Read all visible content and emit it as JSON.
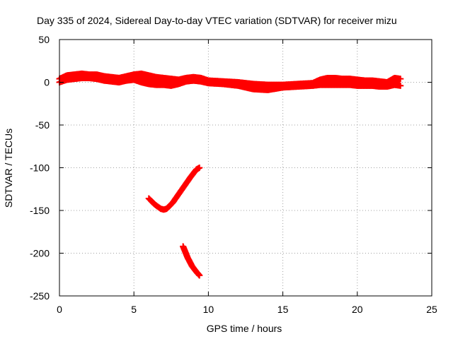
{
  "chart_data": {
    "type": "scatter",
    "title": "Day 335 of 2024, Sidereal Day-to-day VTEC variation (SDTVAR) for receiver mizu",
    "xlabel": "GPS time / hours",
    "ylabel": "SDTVAR / TECUs",
    "xlim": [
      0,
      25
    ],
    "ylim": [
      -250,
      50
    ],
    "x_ticks": [
      0,
      5,
      10,
      15,
      20,
      25
    ],
    "x_tick_labels": [
      "0",
      "5",
      "10",
      "15",
      "20",
      "25"
    ],
    "y_ticks": [
      50,
      0,
      -50,
      -100,
      -150,
      -200,
      -250
    ],
    "y_tick_labels": [
      "50",
      "0",
      "-50",
      "-100",
      "-150",
      "-200",
      "-250"
    ],
    "grid": true,
    "marker": "plus",
    "color": "#ff0000",
    "series": [
      {
        "name": "SDTVAR main band (upper edge)",
        "x": [
          0,
          0.5,
          1.0,
          1.5,
          2.0,
          2.5,
          3.0,
          3.5,
          4.0,
          4.5,
          5.0,
          5.5,
          6.0,
          6.5,
          7.0,
          7.5,
          8.0,
          8.5,
          9.0,
          9.5,
          10.0,
          11.0,
          12.0,
          13.0,
          14.0,
          15.0,
          16.0,
          17.0,
          17.5,
          18.0,
          18.5,
          19.0,
          19.5,
          20.0,
          20.5,
          21.0,
          21.5,
          22.0,
          22.5,
          22.9
        ],
        "y": [
          4,
          8,
          9,
          10,
          9,
          9,
          7,
          6,
          5,
          7,
          9,
          10,
          8,
          6,
          5,
          4,
          3,
          5,
          6,
          5,
          2,
          1,
          0,
          -2,
          -3,
          -3,
          -2,
          -1,
          3,
          5,
          5,
          4,
          4,
          3,
          2,
          2,
          1,
          0,
          5,
          4
        ]
      },
      {
        "name": "SDTVAR main band (lower edge)",
        "x": [
          0,
          0.5,
          1.0,
          1.5,
          2.0,
          2.5,
          3.0,
          3.5,
          4.0,
          4.5,
          5.0,
          5.5,
          6.0,
          6.5,
          7.0,
          7.5,
          8.0,
          8.5,
          9.0,
          9.5,
          10.0,
          11.0,
          12.0,
          13.0,
          14.0,
          15.0,
          16.0,
          17.0,
          17.5,
          18.0,
          18.5,
          19.0,
          19.5,
          20.0,
          20.5,
          21.0,
          21.5,
          22.0,
          22.5,
          22.9
        ],
        "y": [
          0,
          3,
          4,
          5,
          5,
          4,
          2,
          1,
          0,
          2,
          3,
          0,
          -2,
          -3,
          -3,
          -4,
          -2,
          1,
          2,
          1,
          -1,
          -2,
          -4,
          -8,
          -9,
          -6,
          -5,
          -4,
          -3,
          -3,
          -3,
          -3,
          -3,
          -4,
          -4,
          -4,
          -5,
          -5,
          -3,
          -4
        ]
      },
      {
        "name": "SDTVAR arc 1",
        "x": [
          6.0,
          6.4,
          6.8,
          7.0,
          7.2,
          7.6,
          8.0,
          8.4,
          8.8,
          9.2,
          9.4
        ],
        "y": [
          -136,
          -143,
          -148,
          -149,
          -148,
          -141,
          -131,
          -121,
          -111,
          -102,
          -100
        ]
      },
      {
        "name": "SDTVAR arc 2",
        "x": [
          8.3,
          8.6,
          8.9,
          9.2,
          9.4
        ],
        "y": [
          -192,
          -205,
          -215,
          -222,
          -226
        ]
      }
    ]
  }
}
